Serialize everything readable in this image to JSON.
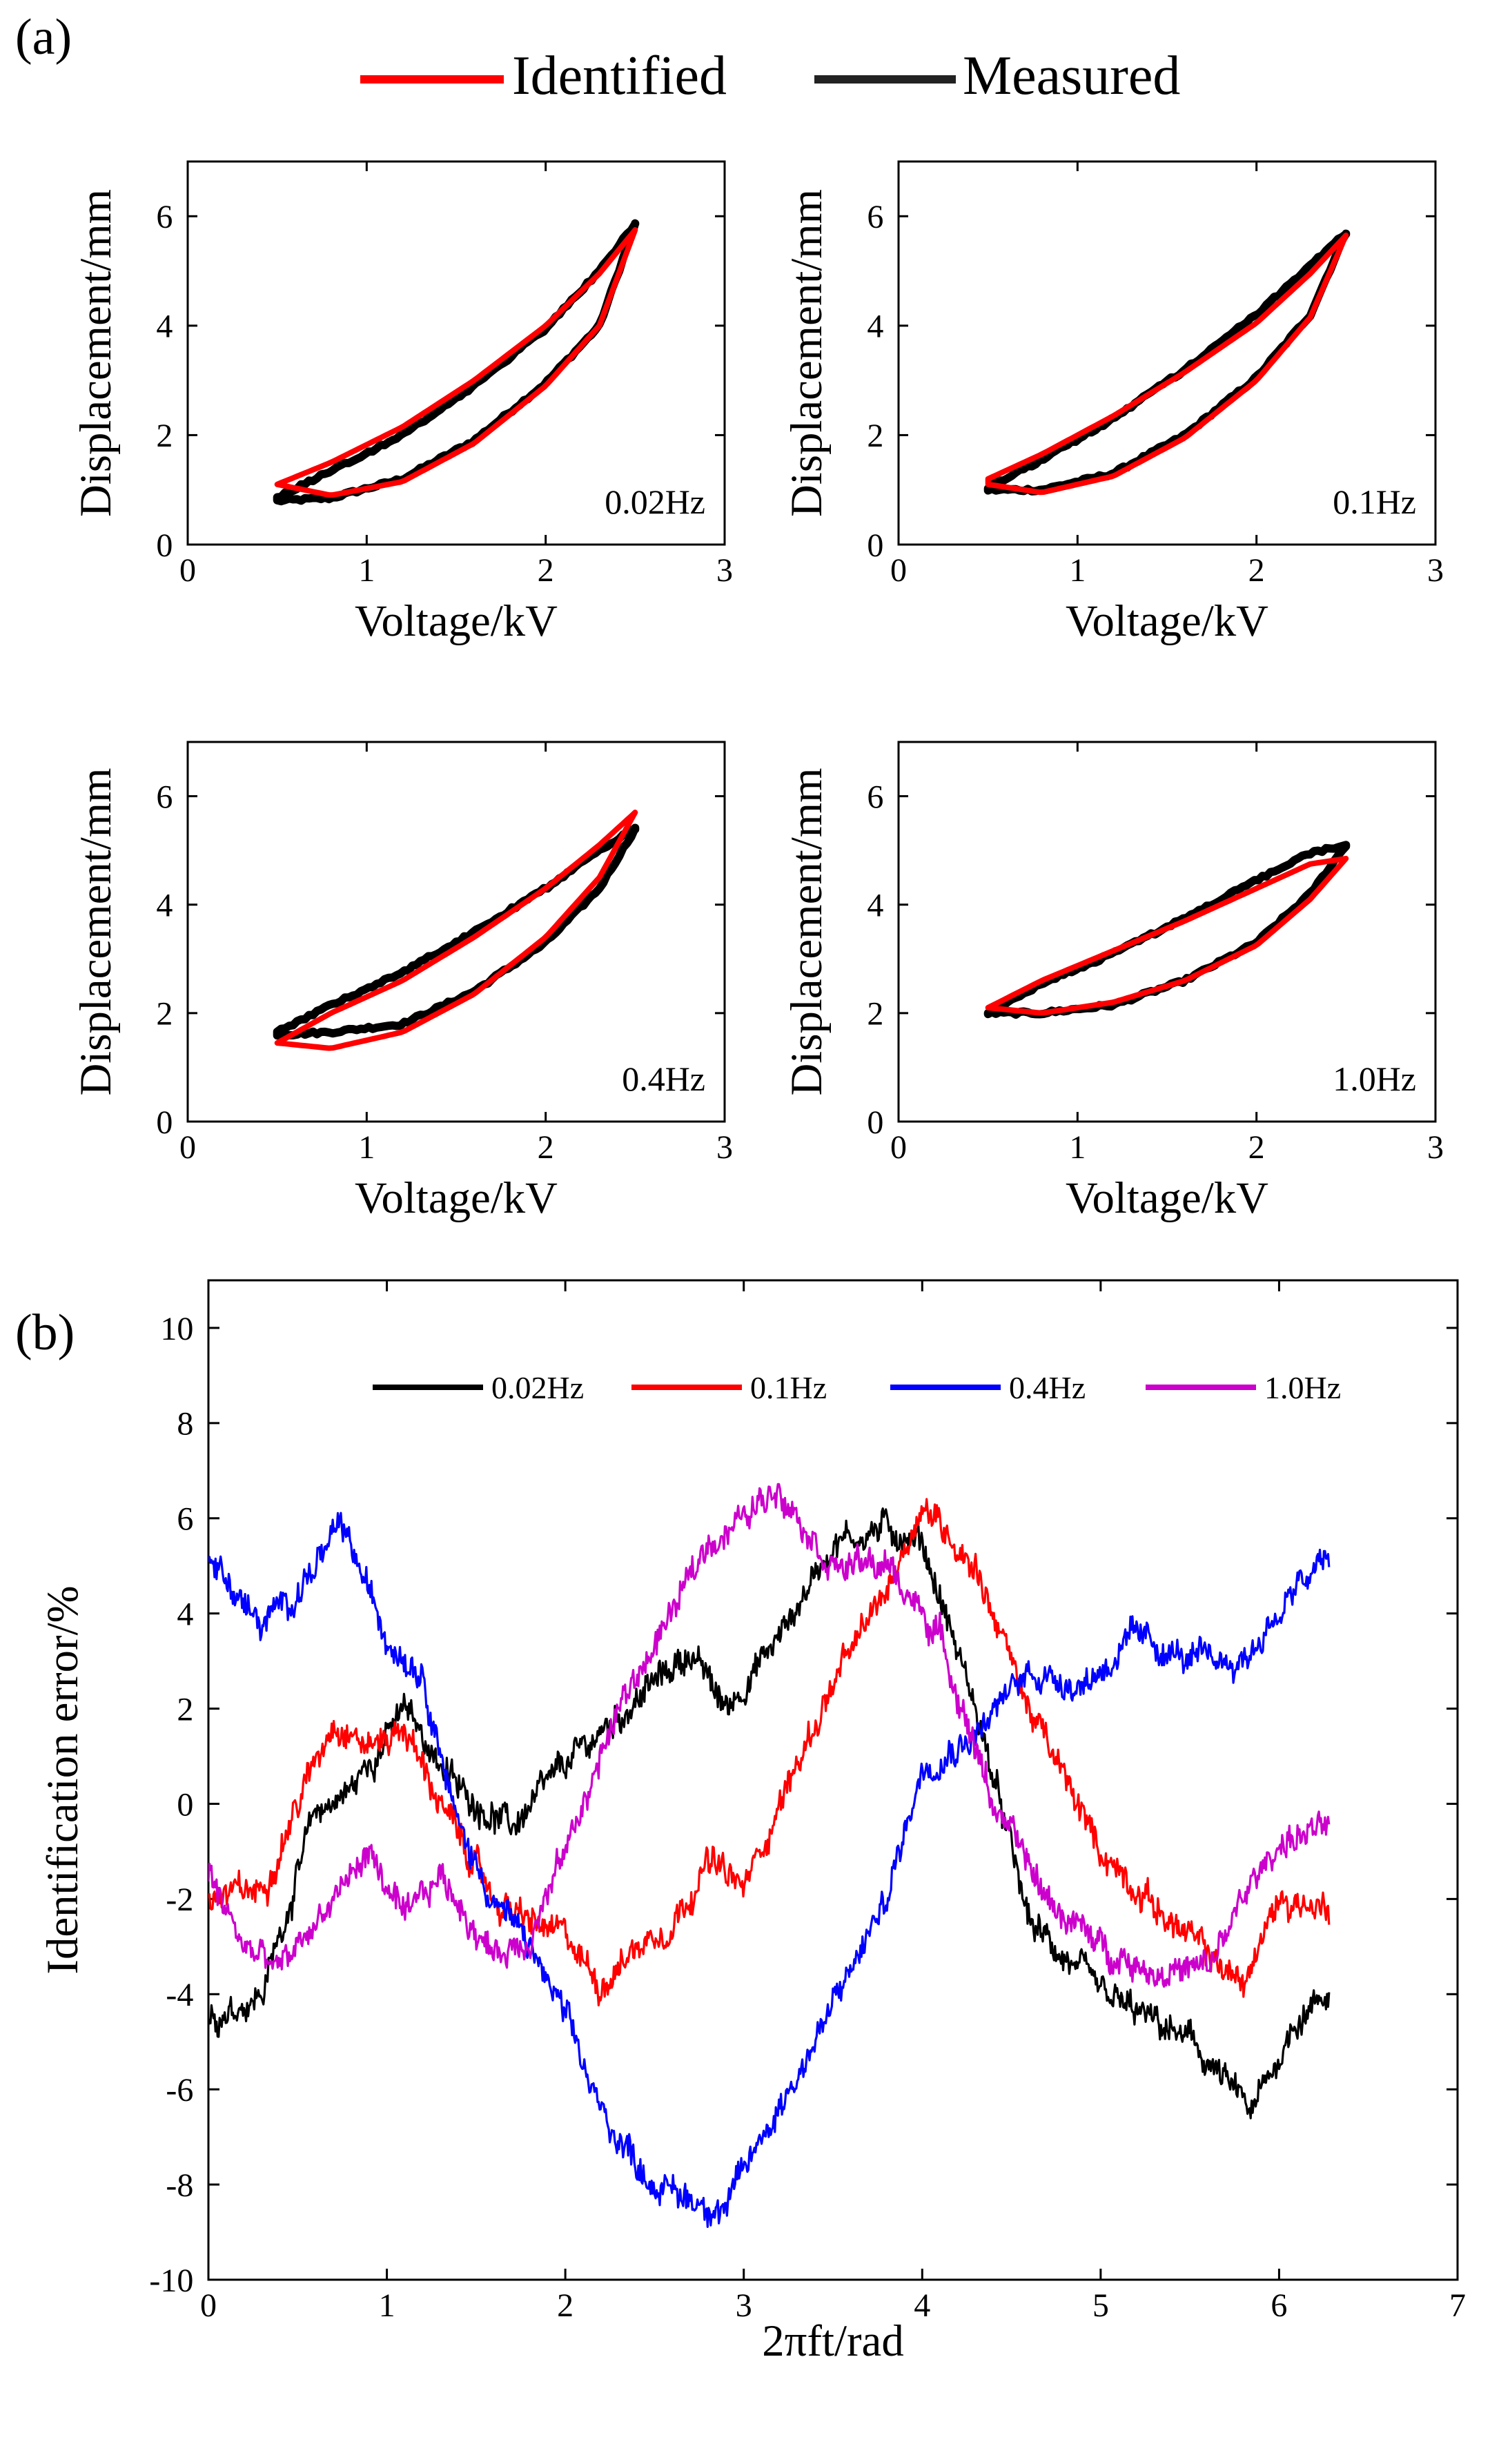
{
  "panel_labels": {
    "a": "(a)",
    "b": "(b)"
  },
  "colors": {
    "identified": "#ff0000",
    "measured": "#000000",
    "axis": "#000000"
  },
  "chart_data": [
    {
      "type": "line",
      "id": "loop-0",
      "annotation": "0.02Hz",
      "xlabel": "Voltage/kV",
      "ylabel": "Displacement/mm",
      "xlim": [
        0,
        3
      ],
      "ylim": [
        0,
        7
      ],
      "xticks": [
        0,
        1,
        2,
        3
      ],
      "yticks": [
        0,
        2,
        4,
        6
      ],
      "legend": {
        "placement": "top-center",
        "entries": [
          "Identified",
          "Measured"
        ]
      },
      "series": [
        {
          "name": "Measured",
          "color": "#000000",
          "upper": [
            [
              0.5,
              0.85
            ],
            [
              0.8,
              1.35
            ],
            [
              1.2,
              2.0
            ],
            [
              1.6,
              2.9
            ],
            [
              2.0,
              3.95
            ],
            [
              2.3,
              5.0
            ],
            [
              2.5,
              5.85
            ]
          ],
          "lower": [
            [
              0.5,
              0.8
            ],
            [
              0.8,
              0.85
            ],
            [
              1.2,
              1.2
            ],
            [
              1.6,
              1.9
            ],
            [
              2.0,
              2.95
            ],
            [
              2.3,
              4.0
            ],
            [
              2.5,
              5.85
            ]
          ]
        },
        {
          "name": "Identified",
          "color": "#ff0000",
          "upper": [
            [
              0.5,
              1.1
            ],
            [
              0.8,
              1.5
            ],
            [
              1.2,
              2.15
            ],
            [
              1.6,
              3.0
            ],
            [
              2.0,
              4.0
            ],
            [
              2.3,
              4.95
            ],
            [
              2.5,
              5.75
            ]
          ],
          "lower": [
            [
              0.5,
              1.1
            ],
            [
              0.8,
              0.9
            ],
            [
              1.2,
              1.15
            ],
            [
              1.6,
              1.85
            ],
            [
              2.0,
              2.9
            ],
            [
              2.3,
              4.0
            ],
            [
              2.5,
              5.75
            ]
          ]
        }
      ]
    },
    {
      "type": "line",
      "id": "loop-1",
      "annotation": "0.1Hz",
      "xlabel": "Voltage/kV",
      "ylabel": "Displacement/mm",
      "xlim": [
        0,
        3
      ],
      "ylim": [
        0,
        7
      ],
      "xticks": [
        0,
        1,
        2,
        3
      ],
      "yticks": [
        0,
        2,
        4,
        6
      ],
      "series": [
        {
          "name": "Measured",
          "color": "#000000",
          "upper": [
            [
              0.5,
              1.05
            ],
            [
              0.8,
              1.55
            ],
            [
              1.2,
              2.3
            ],
            [
              1.6,
              3.2
            ],
            [
              2.0,
              4.2
            ],
            [
              2.3,
              5.1
            ],
            [
              2.5,
              5.7
            ]
          ],
          "lower": [
            [
              0.5,
              1.0
            ],
            [
              0.8,
              1.0
            ],
            [
              1.2,
              1.3
            ],
            [
              1.6,
              2.0
            ],
            [
              2.0,
              3.05
            ],
            [
              2.3,
              4.2
            ],
            [
              2.5,
              5.7
            ]
          ]
        },
        {
          "name": "Identified",
          "color": "#ff0000",
          "upper": [
            [
              0.5,
              1.2
            ],
            [
              0.8,
              1.65
            ],
            [
              1.2,
              2.35
            ],
            [
              1.6,
              3.15
            ],
            [
              2.0,
              4.05
            ],
            [
              2.3,
              4.95
            ],
            [
              2.5,
              5.65
            ]
          ],
          "lower": [
            [
              0.5,
              1.1
            ],
            [
              0.8,
              0.95
            ],
            [
              1.2,
              1.25
            ],
            [
              1.6,
              1.95
            ],
            [
              2.0,
              3.0
            ],
            [
              2.3,
              4.15
            ],
            [
              2.5,
              5.65
            ]
          ]
        }
      ]
    },
    {
      "type": "line",
      "id": "loop-2",
      "annotation": "0.4Hz",
      "xlabel": "Voltage/kV",
      "ylabel": "Displacement/mm",
      "xlim": [
        0,
        3
      ],
      "ylim": [
        0,
        7
      ],
      "xticks": [
        0,
        1,
        2,
        3
      ],
      "yticks": [
        0,
        2,
        4,
        6
      ],
      "series": [
        {
          "name": "Measured",
          "color": "#000000",
          "upper": [
            [
              0.5,
              1.65
            ],
            [
              0.8,
              2.15
            ],
            [
              1.2,
              2.75
            ],
            [
              1.6,
              3.5
            ],
            [
              2.0,
              4.3
            ],
            [
              2.3,
              5.0
            ],
            [
              2.5,
              5.4
            ]
          ],
          "lower": [
            [
              0.5,
              1.6
            ],
            [
              0.8,
              1.65
            ],
            [
              1.2,
              1.8
            ],
            [
              1.6,
              2.4
            ],
            [
              2.0,
              3.3
            ],
            [
              2.3,
              4.3
            ],
            [
              2.5,
              5.4
            ]
          ]
        },
        {
          "name": "Identified",
          "color": "#ff0000",
          "upper": [
            [
              0.5,
              1.45
            ],
            [
              0.8,
              2.0
            ],
            [
              1.2,
              2.6
            ],
            [
              1.6,
              3.4
            ],
            [
              2.0,
              4.3
            ],
            [
              2.3,
              5.1
            ],
            [
              2.5,
              5.7
            ]
          ],
          "lower": [
            [
              0.5,
              1.45
            ],
            [
              0.8,
              1.35
            ],
            [
              1.2,
              1.65
            ],
            [
              1.6,
              2.35
            ],
            [
              2.0,
              3.4
            ],
            [
              2.3,
              4.5
            ],
            [
              2.5,
              5.7
            ]
          ]
        }
      ]
    },
    {
      "type": "line",
      "id": "loop-3",
      "annotation": "1.0Hz",
      "xlabel": "Voltage/kV",
      "ylabel": "Displacement/mm",
      "xlim": [
        0,
        3
      ],
      "ylim": [
        0,
        7
      ],
      "xticks": [
        0,
        1,
        2,
        3
      ],
      "yticks": [
        0,
        2,
        4,
        6
      ],
      "series": [
        {
          "name": "Measured",
          "color": "#000000",
          "upper": [
            [
              0.5,
              2.0
            ],
            [
              0.8,
              2.55
            ],
            [
              1.2,
              3.1
            ],
            [
              1.6,
              3.75
            ],
            [
              2.0,
              4.45
            ],
            [
              2.3,
              4.95
            ],
            [
              2.5,
              5.1
            ]
          ],
          "lower": [
            [
              0.5,
              2.0
            ],
            [
              0.8,
              2.0
            ],
            [
              1.2,
              2.15
            ],
            [
              1.6,
              2.6
            ],
            [
              2.0,
              3.3
            ],
            [
              2.3,
              4.2
            ],
            [
              2.5,
              5.1
            ]
          ]
        },
        {
          "name": "Identified",
          "color": "#ff0000",
          "upper": [
            [
              0.5,
              2.1
            ],
            [
              0.8,
              2.6
            ],
            [
              1.2,
              3.15
            ],
            [
              1.6,
              3.7
            ],
            [
              2.0,
              4.3
            ],
            [
              2.3,
              4.75
            ],
            [
              2.5,
              4.85
            ]
          ],
          "lower": [
            [
              0.5,
              2.1
            ],
            [
              0.8,
              2.0
            ],
            [
              1.2,
              2.2
            ],
            [
              1.6,
              2.6
            ],
            [
              2.0,
              3.25
            ],
            [
              2.3,
              4.1
            ],
            [
              2.5,
              4.85
            ]
          ]
        }
      ]
    },
    {
      "type": "line",
      "id": "error",
      "title": "",
      "xlabel": "2πft/rad",
      "ylabel": "Identification error/%",
      "xlim": [
        0,
        7
      ],
      "ylim": [
        -10,
        11
      ],
      "xticks": [
        0,
        1,
        2,
        3,
        4,
        5,
        6,
        7
      ],
      "yticks": [
        -10,
        -8,
        -6,
        -4,
        -2,
        0,
        2,
        4,
        6,
        8,
        10
      ],
      "legend": {
        "placement": "top",
        "entries": [
          "0.02Hz",
          "0.1Hz",
          "0.4Hz",
          "1.0Hz"
        ]
      },
      "series": [
        {
          "name": "0.02Hz",
          "color": "#000000",
          "x": [
            0,
            0.3,
            0.6,
            0.8,
            1.1,
            1.4,
            1.7,
            2.0,
            2.4,
            2.7,
            2.9,
            3.2,
            3.5,
            3.8,
            4.0,
            4.3,
            4.6,
            5.0,
            5.5,
            5.85,
            6.1,
            6.28
          ],
          "y": [
            -4.5,
            -4.0,
            -0.2,
            0.3,
            2.0,
            0.3,
            -0.5,
            0.8,
            2.2,
            3.2,
            2.0,
            3.5,
            5.5,
            5.8,
            5.5,
            2.0,
            -2.5,
            -4.0,
            -5.0,
            -6.5,
            -4.5,
            -4.0
          ]
        },
        {
          "name": "0.1Hz",
          "color": "#ff0000",
          "x": [
            0,
            0.3,
            0.5,
            0.7,
            0.9,
            1.1,
            1.3,
            1.6,
            1.8,
            2.0,
            2.2,
            2.4,
            2.6,
            2.8,
            3.0,
            3.2,
            3.5,
            3.8,
            4.0,
            4.3,
            4.6,
            5.0,
            5.4,
            5.8,
            6.0,
            6.28
          ],
          "y": [
            -2.0,
            -1.8,
            0.0,
            1.8,
            1.2,
            1.6,
            0.0,
            -2.0,
            -2.5,
            -2.8,
            -3.8,
            -3.0,
            -2.5,
            -1.2,
            -1.8,
            0.0,
            2.5,
            4.5,
            6.3,
            5.0,
            2.0,
            -1.0,
            -2.5,
            -3.8,
            -2.0,
            -2.2
          ]
        },
        {
          "name": "0.4Hz",
          "color": "#0000ff",
          "x": [
            0,
            0.3,
            0.5,
            0.75,
            1.0,
            1.2,
            1.4,
            1.6,
            1.8,
            2.0,
            2.2,
            2.5,
            2.7,
            2.9,
            3.1,
            3.4,
            3.8,
            4.0,
            4.3,
            4.6,
            4.9,
            5.2,
            5.5,
            5.8,
            6.1,
            6.28
          ],
          "y": [
            5.2,
            3.7,
            4.5,
            5.8,
            3.5,
            2.8,
            -0.5,
            -2.0,
            -3.0,
            -4.5,
            -6.5,
            -8.0,
            -8.3,
            -8.5,
            -7.0,
            -5.0,
            -2.0,
            0.8,
            1.5,
            2.8,
            2.5,
            3.5,
            3.0,
            3.0,
            4.5,
            5.2
          ]
        },
        {
          "name": "1.0Hz",
          "color": "#cc00cc",
          "x": [
            0,
            0.2,
            0.4,
            0.6,
            0.9,
            1.1,
            1.3,
            1.6,
            1.8,
            2.0,
            2.3,
            2.6,
            2.8,
            3.0,
            3.2,
            3.5,
            3.8,
            4.1,
            4.4,
            4.7,
            5.0,
            5.3,
            5.6,
            5.8,
            6.0,
            6.28
          ],
          "y": [
            -1.5,
            -3.0,
            -3.5,
            -2.5,
            -1.0,
            -2.5,
            -1.5,
            -3.2,
            -2.8,
            -1.0,
            2.0,
            4.0,
            5.5,
            6.0,
            6.7,
            5.0,
            5.0,
            3.5,
            0.0,
            -2.0,
            -3.0,
            -3.5,
            -3.5,
            -2.0,
            -0.8,
            -0.5
          ]
        }
      ]
    }
  ]
}
